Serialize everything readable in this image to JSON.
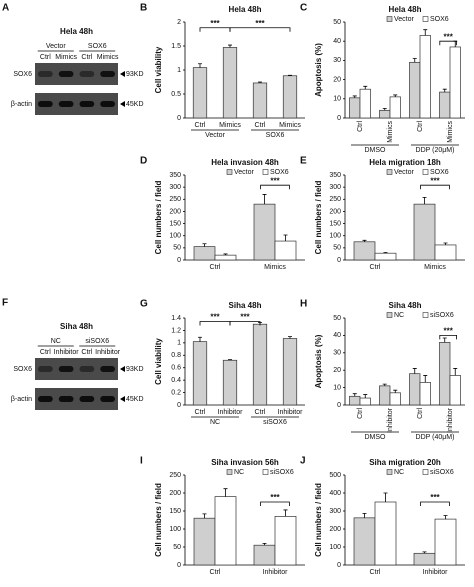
{
  "blots": [
    {
      "panel": "A",
      "title": "Hela  48h",
      "groups": [
        "Vector",
        "SOX6"
      ],
      "lanes": [
        "Ctrl",
        "Mimics",
        "Ctrl",
        "Mimics"
      ],
      "rows": [
        "SOX6",
        "β-actin"
      ],
      "sizes": [
        "93KD",
        "45KD"
      ]
    },
    {
      "panel": "F",
      "title": "Siha  48h",
      "groups": [
        "NC",
        "siSOX6"
      ],
      "lanes": [
        "Ctrl",
        "Inhibitor",
        "Ctrl",
        "Inhibitor"
      ],
      "rows": [
        "SOX6",
        "β-actin"
      ],
      "sizes": [
        "93KD",
        "45KD"
      ]
    }
  ],
  "chart_data": [
    {
      "type": "bar",
      "panel": "B",
      "title": "Hela  48h",
      "ylabel": "Cell viability",
      "categories": [
        "Ctrl",
        "Mimics",
        "Ctrl",
        "Mimics"
      ],
      "groups": [
        "Vector",
        "SOX6"
      ],
      "series": [
        {
          "color": "#cfcfcf",
          "values": [
            1.05,
            1.47,
            0.73,
            0.88
          ],
          "errors": [
            0.08,
            0.05,
            0.02,
            0.01
          ]
        }
      ],
      "ylim": [
        0,
        2
      ],
      "yticks": [
        0,
        0.5,
        1,
        1.5,
        2
      ],
      "annotations": [
        "***",
        "***"
      ]
    },
    {
      "type": "bar",
      "panel": "C",
      "title": "Hela  48h",
      "ylabel": "Apoptosis (%)",
      "categories": [
        "Ctrl",
        "Mimics",
        "Ctrl",
        "Mimics"
      ],
      "groups": [
        "DMSO",
        "DDP (20μM)"
      ],
      "series": [
        {
          "name": "Vector",
          "color": "#cfcfcf",
          "values": [
            10.5,
            4,
            29,
            13.5
          ],
          "errors": [
            1,
            1,
            2,
            1.5
          ]
        },
        {
          "name": "SOX6",
          "color": "#ffffff",
          "values": [
            15,
            11,
            43,
            37
          ],
          "errors": [
            1.5,
            1,
            3,
            3
          ]
        }
      ],
      "ylim": [
        0,
        50
      ],
      "yticks": [
        0,
        10,
        20,
        30,
        40,
        50
      ],
      "annotations": [
        "***"
      ]
    },
    {
      "type": "bar",
      "panel": "D",
      "title": "Hela  invasion 48h",
      "ylabel": "Cell numbers / field",
      "categories": [
        "Ctrl",
        "Mimics"
      ],
      "series": [
        {
          "name": "Vector",
          "color": "#cfcfcf",
          "values": [
            55,
            230
          ],
          "errors": [
            12,
            40
          ]
        },
        {
          "name": "SOX6",
          "color": "#ffffff",
          "values": [
            20,
            78
          ],
          "errors": [
            5,
            25
          ]
        }
      ],
      "ylim": [
        0,
        350
      ],
      "yticks": [
        0,
        50,
        100,
        150,
        200,
        250,
        300,
        350
      ],
      "annotations": [
        "***"
      ]
    },
    {
      "type": "bar",
      "panel": "E",
      "title": "Hela  migration 18h",
      "ylabel": "Cell numbers / field",
      "categories": [
        "Ctrl",
        "Mimics"
      ],
      "series": [
        {
          "name": "Vector",
          "color": "#cfcfcf",
          "values": [
            75,
            230
          ],
          "errors": [
            6,
            28
          ]
        },
        {
          "name": "SOX6",
          "color": "#ffffff",
          "values": [
            28,
            62
          ],
          "errors": [
            3,
            8
          ]
        }
      ],
      "ylim": [
        0,
        350
      ],
      "yticks": [
        0,
        50,
        100,
        150,
        200,
        250,
        300,
        350
      ],
      "annotations": [
        "***"
      ]
    },
    {
      "type": "bar",
      "panel": "G",
      "title": "Siha  48h",
      "ylabel": "Cell viability",
      "categories": [
        "Ctrl",
        "Inhibitor",
        "Ctrl",
        "Inhibitor"
      ],
      "groups": [
        "NC",
        "siSOX6"
      ],
      "series": [
        {
          "color": "#cfcfcf",
          "values": [
            1.02,
            0.72,
            1.3,
            1.07
          ],
          "errors": [
            0.07,
            0.01,
            0.03,
            0.03
          ]
        }
      ],
      "ylim": [
        0,
        1.4
      ],
      "yticks": [
        0,
        0.2,
        0.4,
        0.6,
        0.8,
        1,
        1.2,
        1.4
      ],
      "annotations": [
        "***",
        "***"
      ]
    },
    {
      "type": "bar",
      "panel": "H",
      "title": "Siha  48h",
      "ylabel": "Apoptosis (%)",
      "categories": [
        "Ctrl",
        "Inhibitor",
        "Ctrl",
        "Inhibitor"
      ],
      "groups": [
        "DMSO",
        "DDP (40μM)"
      ],
      "series": [
        {
          "name": "NC",
          "color": "#cfcfcf",
          "values": [
            5,
            11,
            18,
            36
          ],
          "errors": [
            1.5,
            1,
            3,
            2.5
          ]
        },
        {
          "name": "siSOX6",
          "color": "#ffffff",
          "values": [
            4,
            7,
            13,
            17
          ],
          "errors": [
            2,
            1.5,
            4,
            4
          ]
        }
      ],
      "ylim": [
        0,
        50
      ],
      "yticks": [
        0,
        10,
        20,
        30,
        40,
        50
      ],
      "annotations": [
        "***"
      ]
    },
    {
      "type": "bar",
      "panel": "I",
      "title": "Siha  invasion 56h",
      "ylabel": "Cell numbers / field",
      "categories": [
        "Ctrl",
        "Inhibitor"
      ],
      "series": [
        {
          "name": "NC",
          "color": "#cfcfcf",
          "values": [
            130,
            55
          ],
          "errors": [
            12,
            5
          ]
        },
        {
          "name": "siSOX6",
          "color": "#ffffff",
          "values": [
            190,
            135
          ],
          "errors": [
            22,
            18
          ]
        }
      ],
      "ylim": [
        0,
        250
      ],
      "yticks": [
        0,
        50,
        100,
        150,
        200,
        250
      ],
      "annotations": [
        "***"
      ]
    },
    {
      "type": "bar",
      "panel": "J",
      "title": "Siha  migration 20h",
      "ylabel": "Cell numbers / field",
      "categories": [
        "Ctrl",
        "Inhibitor"
      ],
      "series": [
        {
          "name": "NC",
          "color": "#cfcfcf",
          "values": [
            262,
            65
          ],
          "errors": [
            25,
            8
          ]
        },
        {
          "name": "siSOX6",
          "color": "#ffffff",
          "values": [
            350,
            255
          ],
          "errors": [
            50,
            20
          ]
        }
      ],
      "ylim": [
        0,
        500
      ],
      "yticks": [
        0,
        100,
        200,
        300,
        400,
        500
      ],
      "annotations": [
        "***"
      ]
    }
  ]
}
